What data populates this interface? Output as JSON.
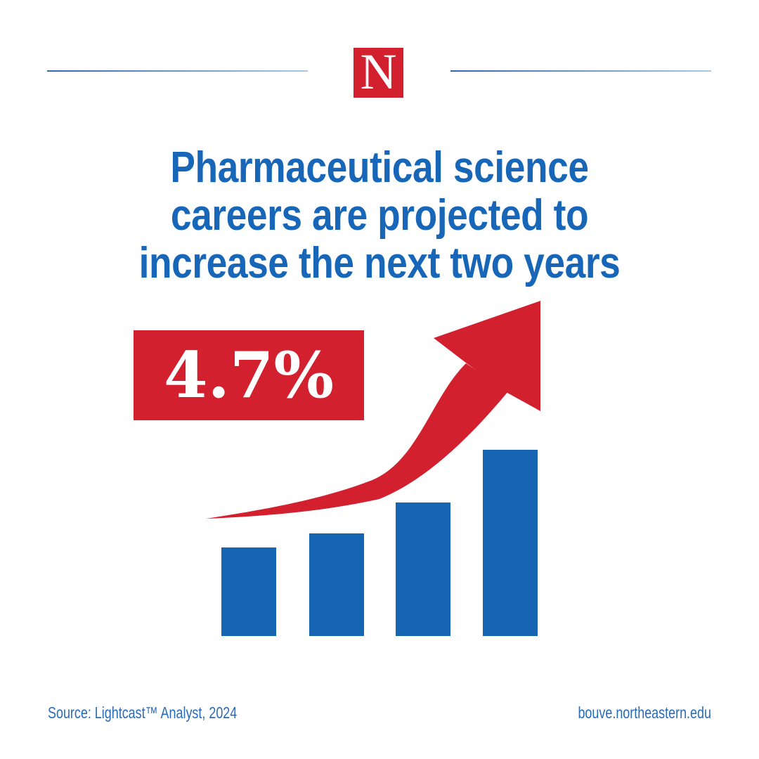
{
  "colors": {
    "red": "#d2202f",
    "bar_blue": "#1565b3",
    "title_blue": "#1766b7",
    "footer_blue": "#2a6bb7",
    "line_dark": "#2d6bb4",
    "line_light": "#aac6e6",
    "white": "#ffffff"
  },
  "header": {
    "logo_letter": "N"
  },
  "title": {
    "full_text": "Pharmaceutical science careers are projected to increase the next two years",
    "lines": [
      "Pharmaceutical science",
      "careers are projected to",
      "increase the next two years"
    ]
  },
  "stat": {
    "value": "4.7%"
  },
  "chart_data": {
    "type": "bar",
    "title": "Pharmaceutical science careers are projected to increase the next two years",
    "annotation": "4.7%",
    "values": [
      126,
      146,
      190,
      265
    ],
    "values_note": "bars are unlabeled decorative relative heights (px), increasing left to right",
    "xlabel": "",
    "ylabel": "",
    "grid": false,
    "legend": false,
    "trend_arrow": "up"
  },
  "footer": {
    "source": "Source: Lightcast™ Analyst, 2024",
    "website": "bouve.northeastern.edu"
  }
}
